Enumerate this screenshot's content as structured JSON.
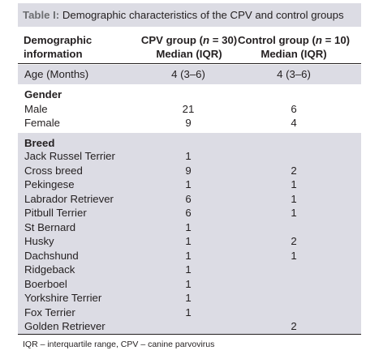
{
  "table": {
    "caption_lead": "Table I:",
    "caption_text": " Demographic characteristics of the CPV and control groups",
    "header": {
      "col1_line1": "Demographic",
      "col1_line2": "information",
      "col2_pre": "CPV group (",
      "col2_n": "n",
      "col2_post": " = 30)",
      "col2_line2": "Median (IQR)",
      "col3_pre": "Control group (",
      "col3_n": "n",
      "col3_post": " = 10)",
      "col3_line2": "Median (IQR)"
    },
    "age": {
      "label": "Age (Months)",
      "cpv": "4 (3–6)",
      "control": "4 (3–6)"
    },
    "gender": {
      "title": "Gender",
      "rows": [
        {
          "label": "Male",
          "cpv": "21",
          "control": "6"
        },
        {
          "label": "Female",
          "cpv": "9",
          "control": "4"
        }
      ]
    },
    "breed": {
      "title": "Breed",
      "rows": [
        {
          "label": "Jack Russel Terrier",
          "cpv": "1",
          "control": ""
        },
        {
          "label": "Cross breed",
          "cpv": "9",
          "control": "2"
        },
        {
          "label": "Pekingese",
          "cpv": "1",
          "control": "1"
        },
        {
          "label": "Labrador Retriever",
          "cpv": "6",
          "control": "1"
        },
        {
          "label": "Pitbull Terrier",
          "cpv": "6",
          "control": "1"
        },
        {
          "label": "St Bernard",
          "cpv": "1",
          "control": ""
        },
        {
          "label": "Husky",
          "cpv": "1",
          "control": "2"
        },
        {
          "label": "Dachshund",
          "cpv": "1",
          "control": "1"
        },
        {
          "label": "Ridgeback",
          "cpv": "1",
          "control": ""
        },
        {
          "label": "Boerboel",
          "cpv": "1",
          "control": ""
        },
        {
          "label": "Yorkshire Terrier",
          "cpv": "1",
          "control": ""
        },
        {
          "label": "Fox Terrier",
          "cpv": "1",
          "control": ""
        },
        {
          "label": "Golden Retriever",
          "cpv": "",
          "control": "2"
        }
      ]
    },
    "footnote": "IQR – interquartile range, CPV – canine parvovirus"
  }
}
